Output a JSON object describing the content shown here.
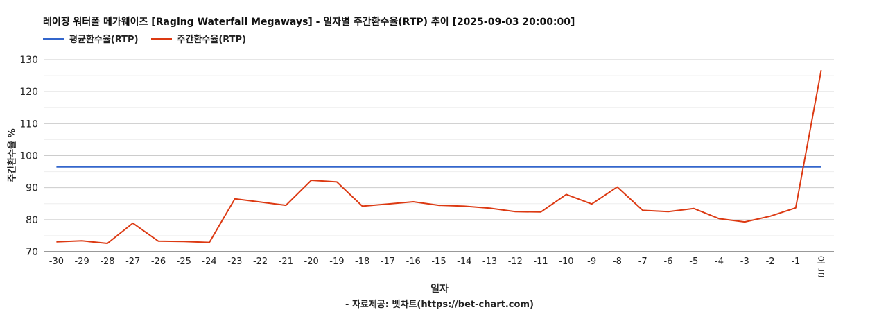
{
  "chart_data": {
    "type": "line",
    "title": "레이징 워터폴 메가웨이즈 [Raging Waterfall Megaways] - 일자별 주간환수율(RTP) 추이 [2025-09-03 20:00:00]",
    "xlabel": "일자",
    "ylabel": "주간환수율 %",
    "source": "- 자료제공: 벳차트(https://bet-chart.com)",
    "ylim": [
      70,
      130
    ],
    "yticks": [
      "70",
      "80",
      "90",
      "100",
      "110",
      "120",
      "130"
    ],
    "categories": [
      "-30",
      "-29",
      "-28",
      "-27",
      "-26",
      "-25",
      "-24",
      "-23",
      "-22",
      "-21",
      "-20",
      "-19",
      "-18",
      "-17",
      "-16",
      "-15",
      "-14",
      "-13",
      "-12",
      "-11",
      "-10",
      "-9",
      "-8",
      "-7",
      "-6",
      "-5",
      "-4",
      "-3",
      "-2",
      "-1",
      "오늘"
    ],
    "grid": true,
    "legend_position": "top-left",
    "series": [
      {
        "name": "평균환수율(RTP)",
        "color": "#3366cc",
        "values": [
          96.5,
          96.5,
          96.5,
          96.5,
          96.5,
          96.5,
          96.5,
          96.5,
          96.5,
          96.5,
          96.5,
          96.5,
          96.5,
          96.5,
          96.5,
          96.5,
          96.5,
          96.5,
          96.5,
          96.5,
          96.5,
          96.5,
          96.5,
          96.5,
          96.5,
          96.5,
          96.5,
          96.5,
          96.5,
          96.5,
          96.5
        ]
      },
      {
        "name": "주간환수율(RTP)",
        "color": "#dc3912",
        "values": [
          73.1,
          73.4,
          72.6,
          78.9,
          73.3,
          73.2,
          72.9,
          86.5,
          85.5,
          84.5,
          92.3,
          91.8,
          84.2,
          84.9,
          85.6,
          84.5,
          84.2,
          83.6,
          82.5,
          82.4,
          87.9,
          84.9,
          90.2,
          82.9,
          82.5,
          83.5,
          80.3,
          79.3,
          81.1,
          83.7,
          126.7
        ]
      }
    ]
  }
}
